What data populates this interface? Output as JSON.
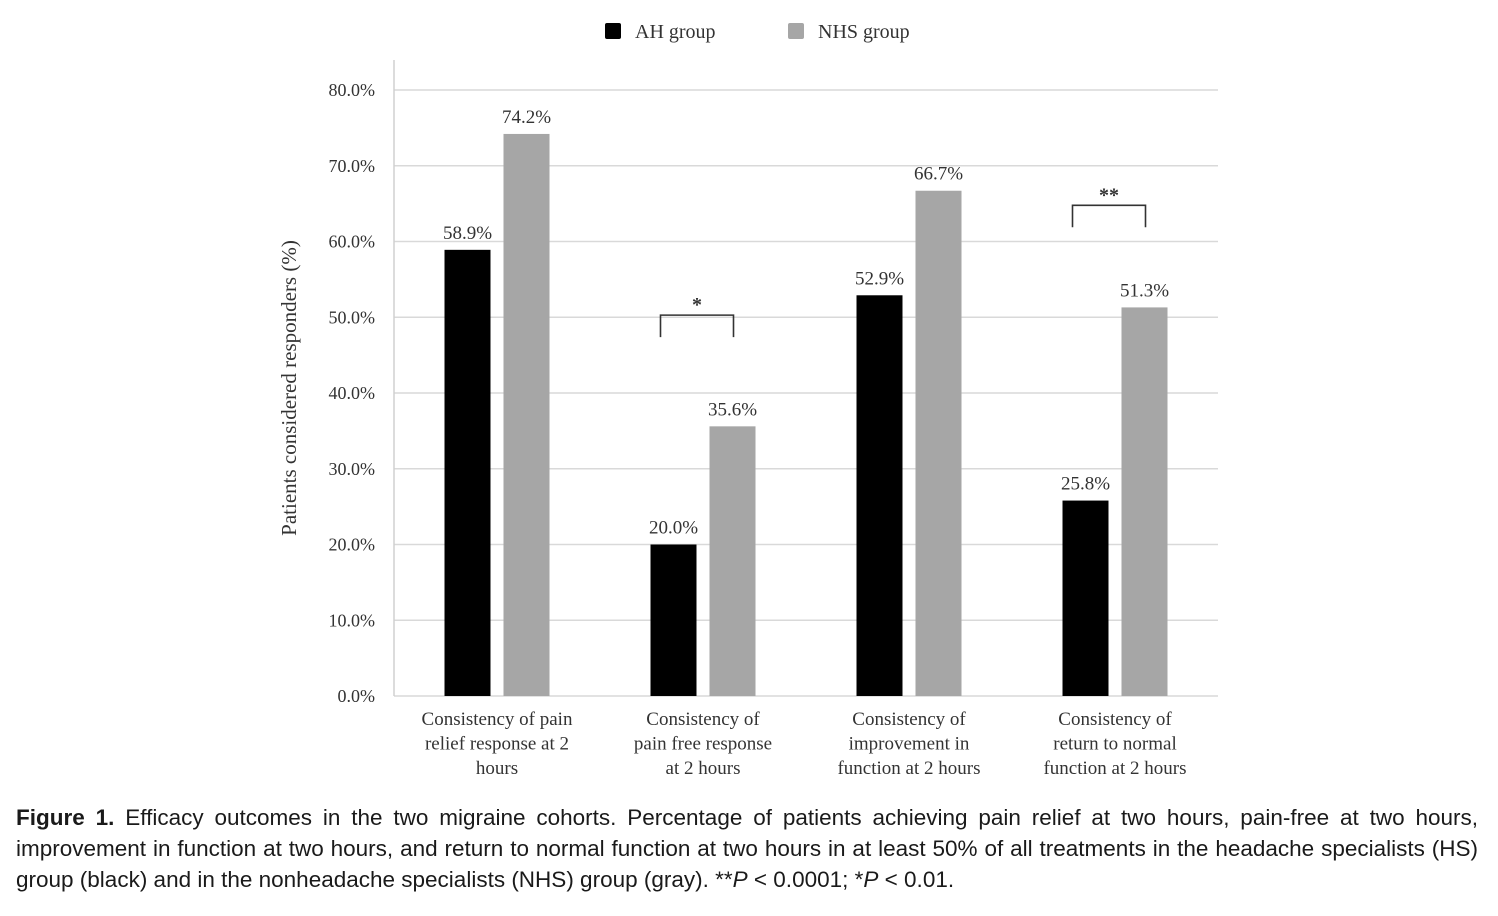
{
  "chart_data": {
    "type": "bar",
    "categories": [
      [
        "Consistency  of pain",
        "relief  response  at 2",
        "hours"
      ],
      [
        "Consistency   of",
        "pain  free  response",
        "at 2 hours"
      ],
      [
        "Consistency   of",
        "improvement   in",
        "function  at 2 hours"
      ],
      [
        "Consistency   of",
        "return  to normal",
        "function  at 2 hours"
      ]
    ],
    "series": [
      {
        "name": "AH group",
        "color": "#000000",
        "values": [
          58.9,
          20.0,
          52.9,
          25.8
        ],
        "labels": [
          "58.9%",
          "20.0%",
          "52.9%",
          "25.8%"
        ]
      },
      {
        "name": "NHS group",
        "color": "#a6a6a6",
        "values": [
          74.2,
          35.6,
          66.7,
          51.3
        ],
        "labels": [
          "74.2%",
          "35.6%",
          "66.7%",
          "51.3%"
        ]
      }
    ],
    "ylabel": "Patients  considered responders (%)",
    "ylim": [
      0,
      80
    ],
    "yticks": [
      0,
      10,
      20,
      30,
      40,
      50,
      60,
      70,
      80
    ],
    "ytick_labels": [
      "0.0%",
      "10.0%",
      "20.0%",
      "30.0%",
      "40.0%",
      "50.0%",
      "60.0%",
      "70.0%",
      "80.0%"
    ],
    "grid": true,
    "legend_position": "top-center",
    "significance": [
      {
        "category_index": 1,
        "label": "*",
        "at": 45
      },
      {
        "category_index": 3,
        "label": "**",
        "at": 59.5
      }
    ]
  },
  "caption": {
    "label": "Figure 1.",
    "text_1": " Efficacy outcomes in the two migraine cohorts. Percentage of patients achieving pain relief at two hours, pain-free at two hours, improvement in function at two hours, and return to normal function at two hours in at least 50% of all treatments in the headache specialists (HS) group (black) and in the nonheadache specialists (NHS) group (gray). **",
    "p1": "P",
    "text_2": " < 0.0001; *",
    "p2": "P",
    "text_3": " < 0.01."
  }
}
